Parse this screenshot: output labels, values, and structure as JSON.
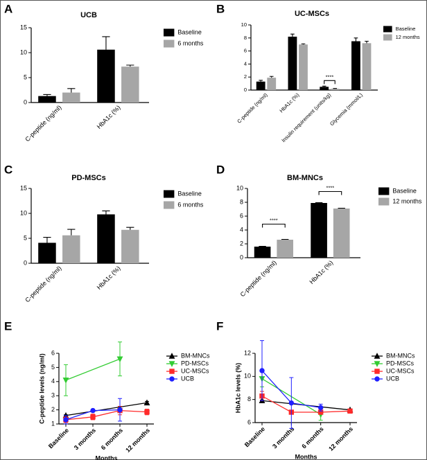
{
  "chart_data": [
    {
      "type": "bar",
      "panel": "A",
      "title": "UCB",
      "categories": [
        "C-peptide (ng/ml)",
        "HbA1c (%)"
      ],
      "series": [
        {
          "name": "Baseline",
          "color": "#000000",
          "values": [
            1.3,
            10.6
          ],
          "errors": [
            0.3,
            2.6
          ]
        },
        {
          "name": "6 months",
          "color": "#a6a6a6",
          "values": [
            2.0,
            7.2
          ],
          "errors": [
            0.8,
            0.3
          ]
        }
      ],
      "ylim": [
        0,
        15
      ],
      "yticks": [
        0,
        5,
        10,
        15
      ]
    },
    {
      "type": "bar",
      "panel": "B",
      "title": "UC-MSCs",
      "categories": [
        "C-peptide (ng/ml)",
        "HbA1c (%)",
        "Insulin requirement (units/kg)",
        "Glycemia (mmol/L)"
      ],
      "series": [
        {
          "name": "Baseline",
          "color": "#000000",
          "values": [
            1.3,
            8.2,
            0.5,
            7.5
          ],
          "errors": [
            0.2,
            0.4,
            0.1,
            0.5
          ]
        },
        {
          "name": "12 months",
          "color": "#a6a6a6",
          "values": [
            1.9,
            7.0,
            0.2,
            7.2
          ],
          "errors": [
            0.2,
            0.1,
            0.05,
            0.3
          ]
        }
      ],
      "ylim": [
        0,
        10
      ],
      "yticks": [
        0,
        2,
        4,
        6,
        8,
        10
      ],
      "annotations": [
        "****"
      ]
    },
    {
      "type": "bar",
      "panel": "C",
      "title": "PD-MSCs",
      "categories": [
        "C-peptide (ng/ml)",
        "HbA1c (%)"
      ],
      "series": [
        {
          "name": "Baseline",
          "color": "#000000",
          "values": [
            4.1,
            9.8
          ],
          "errors": [
            1.1,
            0.7
          ]
        },
        {
          "name": "6 months",
          "color": "#a6a6a6",
          "values": [
            5.6,
            6.7
          ],
          "errors": [
            1.2,
            0.5
          ]
        }
      ],
      "ylim": [
        0,
        15
      ],
      "yticks": [
        0,
        5,
        10,
        15
      ]
    },
    {
      "type": "bar",
      "panel": "D",
      "title": "BM-MNCs",
      "categories": [
        "C-peptide (ng/ml)",
        "HbA1c (%)"
      ],
      "series": [
        {
          "name": "Baseline",
          "color": "#000000",
          "values": [
            1.6,
            7.9
          ],
          "errors": [
            0.05,
            0.05
          ]
        },
        {
          "name": "12 months",
          "color": "#a6a6a6",
          "values": [
            2.6,
            7.1
          ],
          "errors": [
            0.05,
            0.05
          ]
        }
      ],
      "ylim": [
        0,
        10
      ],
      "yticks": [
        0,
        2,
        4,
        6,
        8,
        10
      ],
      "annotations": [
        "****",
        "****"
      ]
    },
    {
      "type": "line",
      "panel": "E",
      "categories": [
        "Baseline",
        "3 months",
        "6 months",
        "12 months"
      ],
      "xlabel": "Months",
      "ylabel": "C-peptide levels (ng/ml)",
      "series": [
        {
          "name": "BM-MNCs",
          "color": "#000000",
          "marker": "triangle-up",
          "x": [
            "Baseline",
            "12 months"
          ],
          "values": [
            1.6,
            2.5
          ],
          "errors": [
            0.05,
            0.1
          ]
        },
        {
          "name": "PD-MSCs",
          "color": "#33cc33",
          "marker": "triangle-down",
          "x": [
            "Baseline",
            "6 months"
          ],
          "values": [
            4.1,
            5.6
          ],
          "errors": [
            1.1,
            1.2
          ]
        },
        {
          "name": "UC-MSCs",
          "color": "#ff2a2a",
          "marker": "square",
          "x": [
            "Baseline",
            "3 months",
            "6 months",
            "12 months"
          ],
          "values": [
            1.3,
            1.5,
            1.95,
            1.85
          ],
          "errors": [
            0.2,
            0.2,
            0.3,
            0.2
          ]
        },
        {
          "name": "UCB",
          "color": "#1f1fff",
          "marker": "circle",
          "x": [
            "Baseline",
            "3 months",
            "6 months"
          ],
          "values": [
            1.3,
            1.95,
            2.0
          ],
          "errors": [
            0.3,
            0.1,
            0.8
          ]
        }
      ],
      "ylim": [
        1,
        6
      ],
      "yticks": [
        1,
        2,
        3,
        4,
        5,
        6
      ]
    },
    {
      "type": "line",
      "panel": "F",
      "categories": [
        "Baseline",
        "3 months",
        "6 months",
        "12 months"
      ],
      "xlabel": "Months",
      "ylabel": "HbA1c levels (%)",
      "series": [
        {
          "name": "BM-MNCs",
          "color": "#000000",
          "marker": "triangle-up",
          "x": [
            "Baseline",
            "12 months"
          ],
          "values": [
            7.9,
            7.1
          ],
          "errors": [
            0.05,
            0.05
          ]
        },
        {
          "name": "PD-MSCs",
          "color": "#33cc33",
          "marker": "triangle-down",
          "x": [
            "Baseline",
            "6 months"
          ],
          "values": [
            9.8,
            6.7
          ],
          "errors": [
            0.7,
            0.5
          ]
        },
        {
          "name": "UC-MSCs",
          "color": "#ff2a2a",
          "marker": "square",
          "x": [
            "Baseline",
            "3 months",
            "6 months",
            "12 months"
          ],
          "values": [
            8.3,
            6.9,
            6.9,
            7.0
          ],
          "errors": [
            0.4,
            0.1,
            0.1,
            0.1
          ]
        },
        {
          "name": "UCB",
          "color": "#1f1fff",
          "marker": "circle",
          "x": [
            "Baseline",
            "3 months",
            "6 months"
          ],
          "values": [
            10.5,
            7.7,
            7.3
          ],
          "errors": [
            2.6,
            2.2,
            0.3
          ]
        }
      ],
      "ylim": [
        6,
        12
      ],
      "yticks": [
        6,
        8,
        10,
        12
      ]
    }
  ]
}
